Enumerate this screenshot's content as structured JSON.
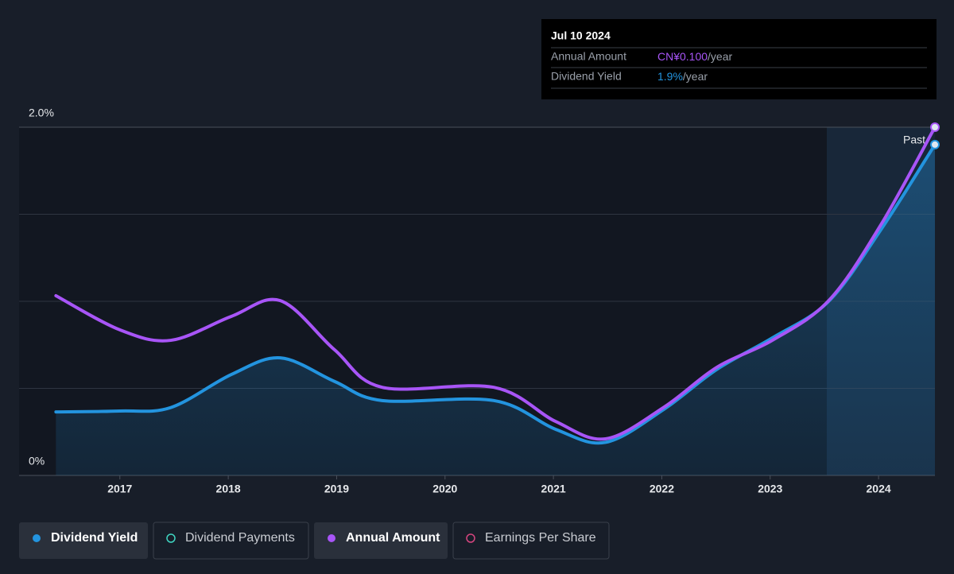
{
  "chart_data": {
    "type": "line",
    "x": [
      2016.41,
      2017.0,
      2017.47,
      2018.03,
      2018.48,
      2018.98,
      2019.42,
      2020.45,
      2021.02,
      2021.48,
      2022.02,
      2022.51,
      2023.02,
      2023.54,
      2024.02,
      2024.52
    ],
    "series": [
      {
        "name": "Dividend Yield",
        "color": "#2394df",
        "area": true,
        "values": [
          0.365,
          0.37,
          0.39,
          0.58,
          0.675,
          0.54,
          0.43,
          0.43,
          0.265,
          0.19,
          0.38,
          0.61,
          0.79,
          1.0,
          1.41,
          1.9
        ]
      },
      {
        "name": "Annual Amount",
        "color": "#a855f7",
        "axis": "y2",
        "values": [
          0.0516,
          0.0418,
          0.0388,
          0.0457,
          0.0502,
          0.0361,
          0.0253,
          0.0253,
          0.0155,
          0.0105,
          0.0196,
          0.0311,
          0.0388,
          0.0502,
          0.0719,
          0.1
        ]
      }
    ],
    "xlim": [
      2016.07,
      2024.52
    ],
    "xticks": [
      2017,
      2018,
      2019,
      2020,
      2021,
      2022,
      2023,
      2024
    ],
    "ylim": [
      0,
      2
    ],
    "yticks": [
      {
        "value": 0,
        "label": "0%"
      },
      {
        "value": 2,
        "label": "2.0%"
      }
    ],
    "ygrid": [
      0.5,
      1,
      1.5
    ],
    "y2lim": [
      0,
      0.1
    ],
    "region_label": "Past",
    "tooltip": {
      "date": "Jul 10 2024",
      "rows": [
        {
          "label": "Annual Amount",
          "value": "CN¥0.100",
          "unit": "/year",
          "color": "#a855f7"
        },
        {
          "label": "Dividend Yield",
          "value": "1.9%",
          "unit": "/year",
          "color": "#2394df"
        }
      ]
    },
    "legend": [
      {
        "name": "Dividend Yield",
        "color": "#2394df",
        "active": true
      },
      {
        "name": "Dividend Payments",
        "color": "#3fd5c1",
        "active": false
      },
      {
        "name": "Annual Amount",
        "color": "#a855f7",
        "active": true
      },
      {
        "name": "Earnings Per Share",
        "color": "#d6457f",
        "active": false
      }
    ]
  }
}
